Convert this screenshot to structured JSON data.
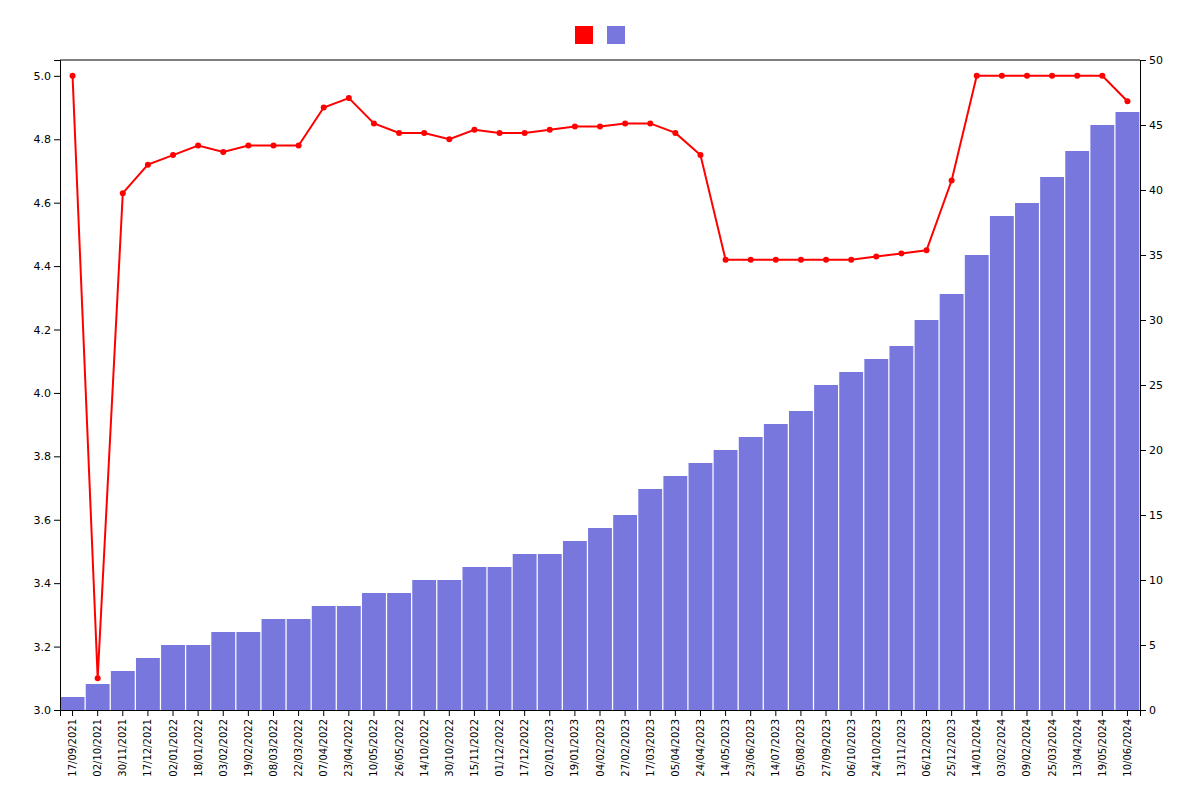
{
  "chart_data": {
    "type": "bar",
    "categories": [
      "17/09/2021",
      "02/10/2021",
      "30/11/2021",
      "17/12/2021",
      "02/01/2022",
      "18/01/2022",
      "03/02/2022",
      "19/02/2022",
      "08/03/2022",
      "22/03/2022",
      "07/04/2022",
      "23/04/2022",
      "10/05/2022",
      "26/05/2022",
      "14/10/2022",
      "30/10/2022",
      "15/11/2022",
      "01/12/2022",
      "17/12/2022",
      "02/01/2023",
      "19/01/2023",
      "04/02/2023",
      "27/02/2023",
      "17/03/2023",
      "05/04/2023",
      "24/04/2023",
      "14/05/2023",
      "23/06/2023",
      "14/07/2023",
      "05/08/2023",
      "27/09/2023",
      "06/10/2023",
      "24/10/2023",
      "13/11/2023",
      "06/12/2023",
      "25/12/2023",
      "14/01/2024",
      "03/02/2024",
      "09/02/2024",
      "25/03/2024",
      "13/04/2024",
      "19/05/2024",
      "10/06/2024"
    ],
    "series": [
      {
        "type": "line",
        "color": "#ff0000",
        "marker": "circle",
        "values": [
          5.0,
          3.1,
          4.63,
          4.72,
          4.75,
          4.78,
          4.76,
          4.78,
          4.78,
          4.78,
          4.9,
          4.93,
          4.85,
          4.82,
          4.82,
          4.8,
          4.83,
          4.82,
          4.82,
          4.83,
          4.84,
          4.84,
          4.85,
          4.85,
          4.82,
          4.75,
          4.42,
          4.42,
          4.42,
          4.42,
          4.42,
          4.42,
          4.43,
          4.44,
          4.45,
          4.67,
          5.0,
          5.0,
          5.0,
          5.0,
          5.0,
          5.0,
          4.92
        ]
      },
      {
        "type": "bar",
        "color": "#7777dd",
        "axis": "y2",
        "values": [
          1,
          2,
          3,
          4,
          5,
          5,
          6,
          6,
          7,
          7,
          8,
          8,
          9,
          9,
          10,
          10,
          11,
          11,
          12,
          12,
          13,
          14,
          15,
          17,
          18,
          19,
          20,
          21,
          22,
          23,
          25,
          26,
          27,
          28,
          30,
          32,
          35,
          38,
          39,
          41,
          43,
          45,
          46
        ]
      }
    ],
    "ylim": [
      3.0,
      5.05
    ],
    "yticks": [
      {
        "value": 3.0,
        "label": "3.0"
      },
      3.2,
      3.4,
      3.6,
      3.8,
      {
        "value": 4.0,
        "label": "4.0"
      },
      4.2,
      4.4,
      4.6,
      4.8,
      {
        "value": 5.0,
        "label": "5.0"
      }
    ],
    "y2lim": [
      0,
      50
    ],
    "y2ticks": [
      0,
      5,
      10,
      15,
      20,
      25,
      30,
      35,
      40,
      45,
      50
    ],
    "grid": false,
    "legend": "top"
  }
}
